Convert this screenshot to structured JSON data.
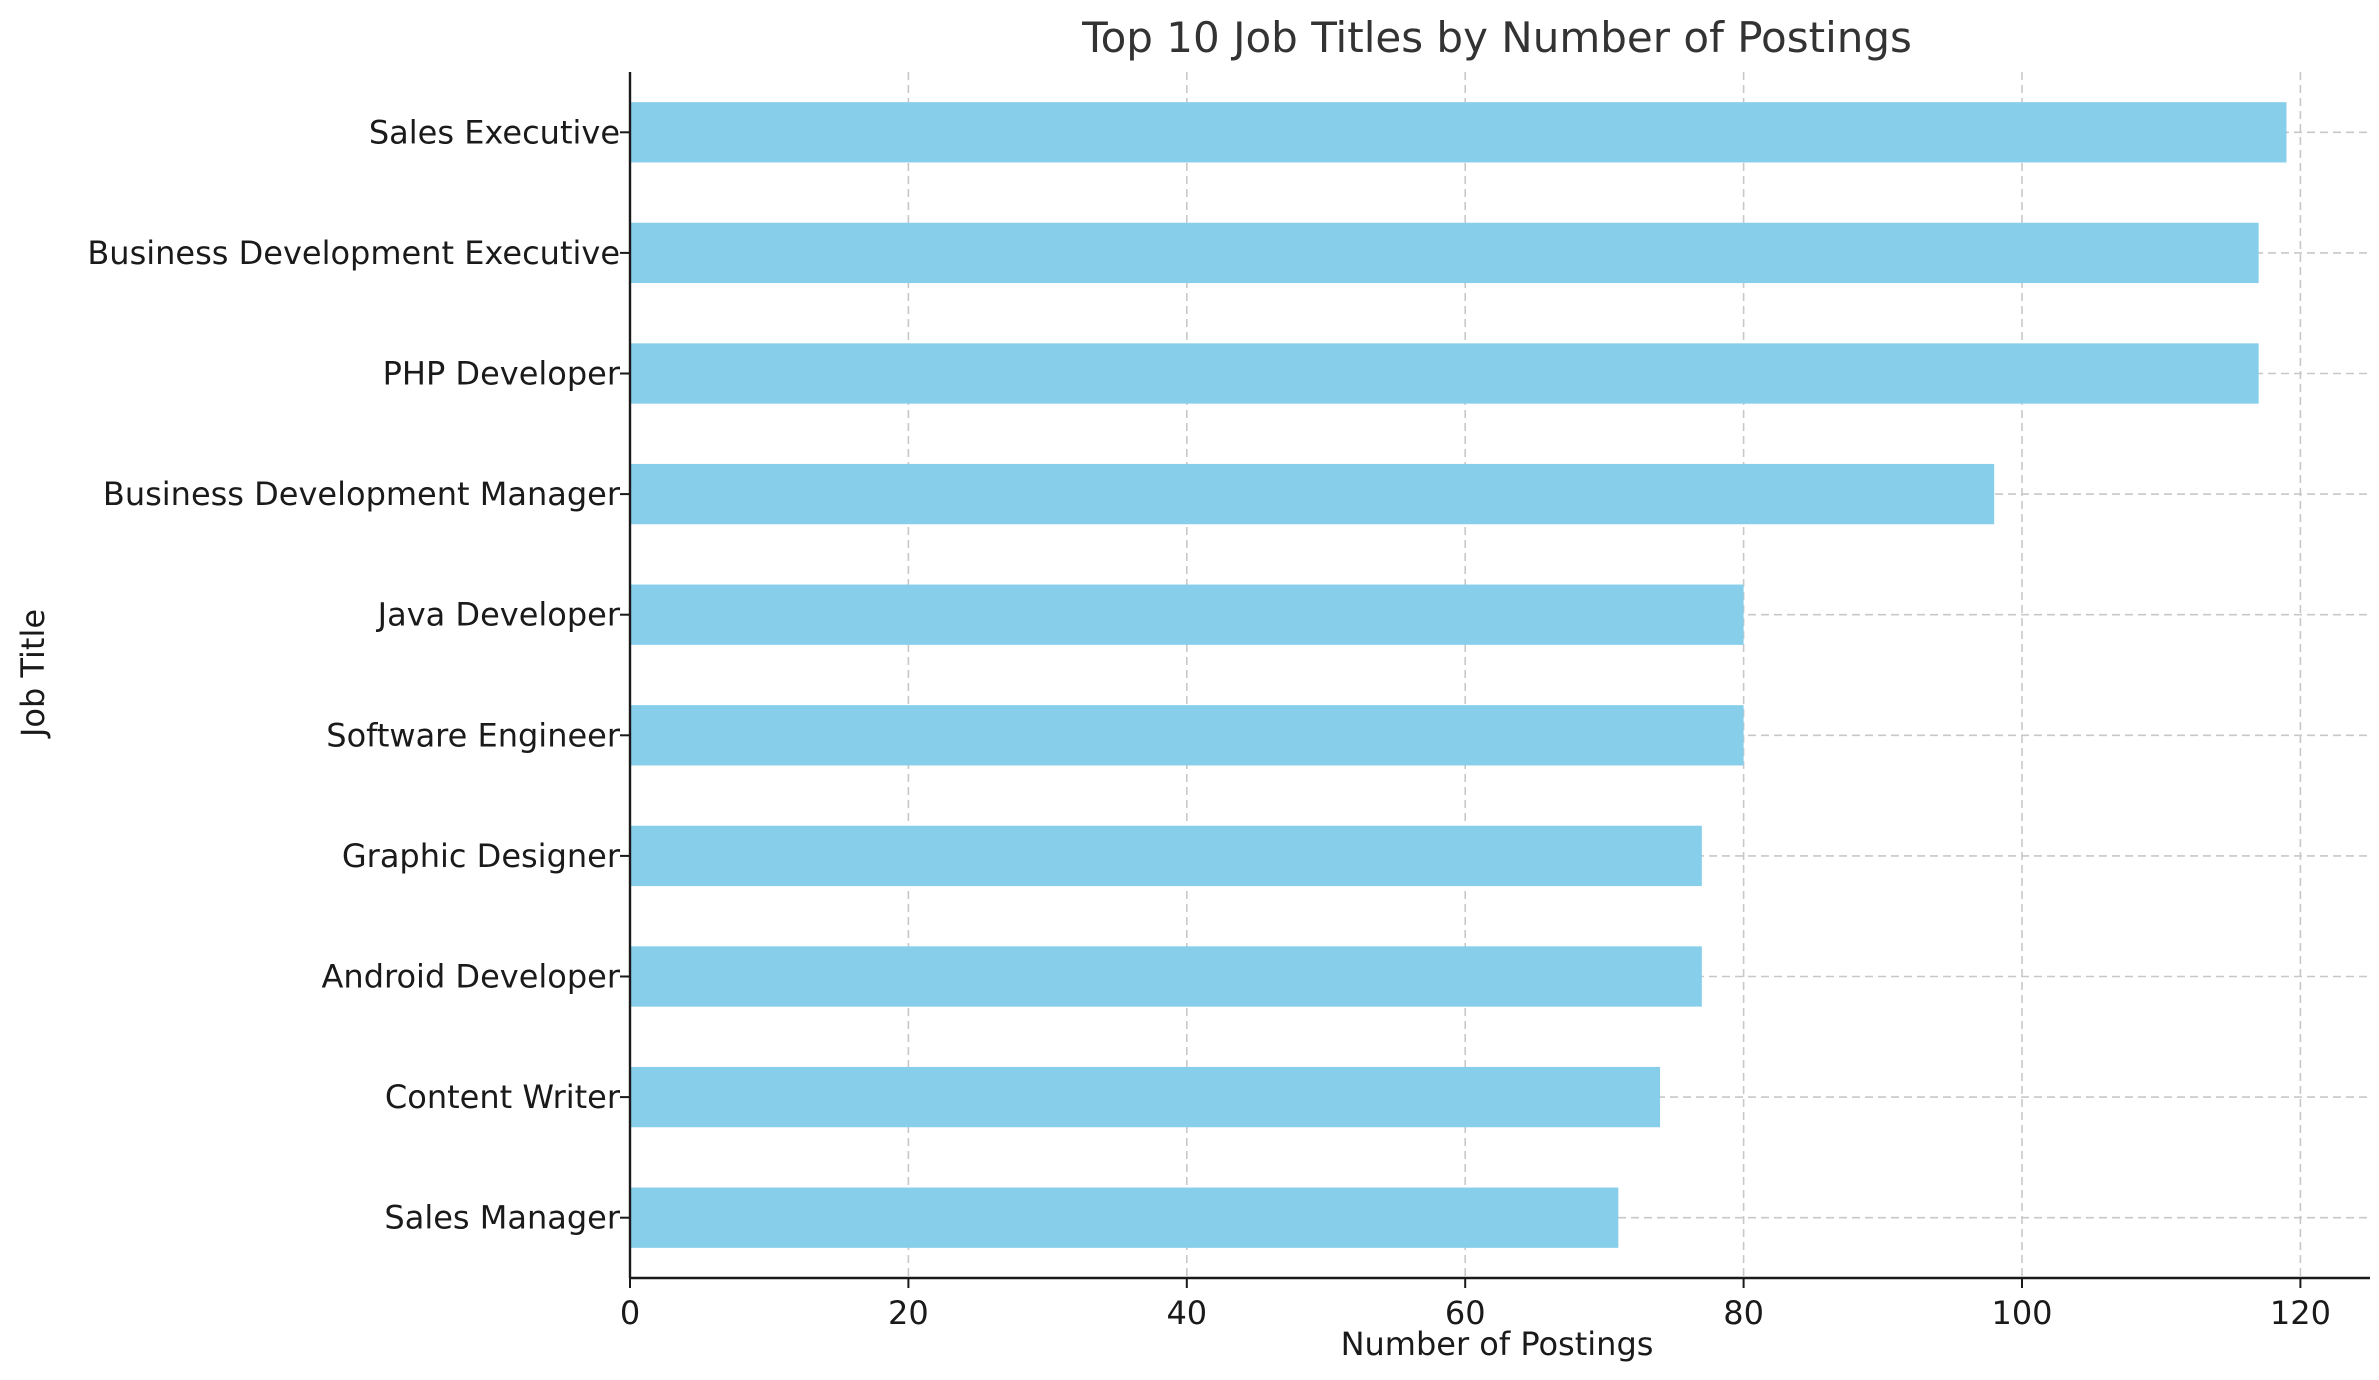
{
  "chart_data": {
    "type": "bar",
    "orientation": "horizontal",
    "title": "Top 10 Job Titles by Number of Postings",
    "xlabel": "Number of Postings",
    "ylabel": "Job Title",
    "categories": [
      "Sales Executive",
      "Business Development Executive",
      "PHP Developer",
      "Business Development Manager",
      "Java Developer",
      "Software Engineer",
      "Graphic Designer",
      "Android Developer",
      "Content Writer",
      "Sales Manager"
    ],
    "values": [
      119,
      117,
      117,
      98,
      80,
      80,
      77,
      77,
      74,
      71
    ],
    "xlim": [
      0,
      125
    ],
    "xticks": [
      0,
      20,
      40,
      60,
      80,
      100,
      120
    ],
    "grid": true,
    "bar_color": "#87CEEB"
  }
}
